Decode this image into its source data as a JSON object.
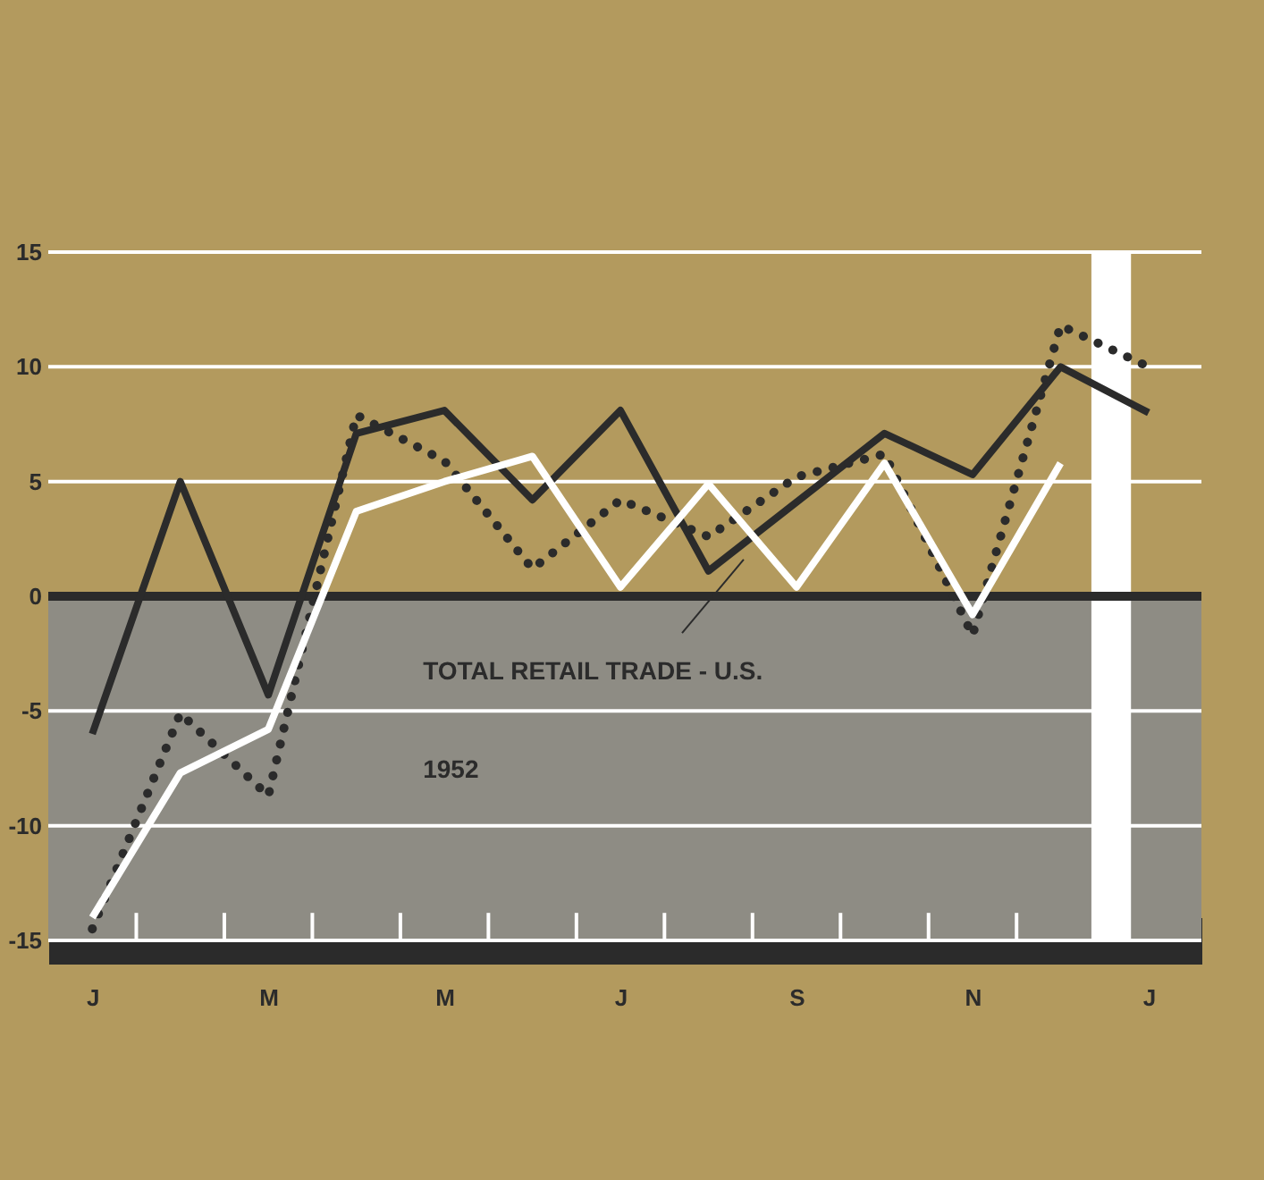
{
  "chart_data": {
    "type": "line",
    "annotations": [
      "TOTAL RETAIL TRADE - U.S.",
      "1952"
    ],
    "categories": [
      "J",
      null,
      "M",
      null,
      "M",
      null,
      "J",
      null,
      "S",
      null,
      "N",
      null,
      "J"
    ],
    "ylim": [
      -15,
      15
    ],
    "yticks": [
      -15,
      -10,
      -5,
      0,
      5,
      10,
      15
    ],
    "grid": "y",
    "series": [
      {
        "color": "#2b2b2b",
        "line_style": "solid",
        "values": [
          -6,
          5,
          -4.3,
          7.1,
          8.1,
          4.2,
          8.1,
          1.1,
          4.1,
          7.1,
          5.3,
          10,
          8
        ]
      },
      {
        "color": "#2b2b2b",
        "line_style": "dotted",
        "values": [
          -14.5,
          -5.1,
          -8.7,
          7.9,
          5.9,
          1.2,
          4.2,
          2.6,
          5.2,
          6.2,
          -1.7,
          11.8,
          10
        ]
      },
      {
        "color": "#ffffff",
        "line_style": "solid",
        "values": [
          -14,
          -7.7,
          -5.8,
          3.7,
          5,
          6.1,
          0.4,
          4.9,
          0.4,
          5.8,
          -0.8,
          5.8,
          null
        ]
      }
    ],
    "ref_lines": [
      {
        "axis": "y",
        "value": 0,
        "color": "#2b2b2b"
      }
    ],
    "bands": [
      {
        "axis": "y",
        "from": -15,
        "to": 0,
        "color": "#8e8c84"
      }
    ]
  }
}
